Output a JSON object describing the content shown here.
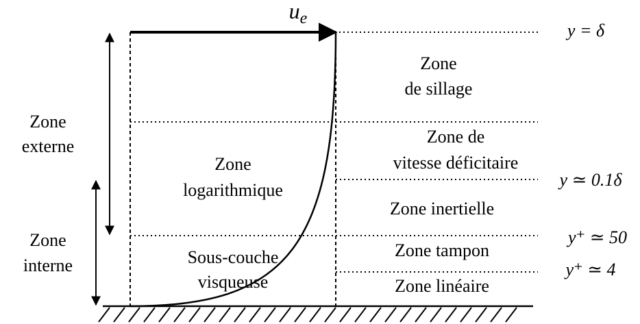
{
  "velocity_label": {
    "base": "u",
    "sub": "e"
  },
  "left_labels": [
    {
      "lines": [
        "Zone",
        "externe"
      ]
    },
    {
      "lines": [
        "Zone",
        "interne"
      ]
    }
  ],
  "inner_labels": [
    {
      "lines": [
        "Zone",
        "logarithmique"
      ]
    },
    {
      "lines": [
        "Sous-couche",
        "visqueuse"
      ]
    }
  ],
  "zones": [
    {
      "lines": [
        "Zone",
        "de sillage"
      ]
    },
    {
      "lines": [
        "Zone de",
        "vitesse déficitaire"
      ]
    },
    {
      "lines": [
        "Zone inertielle"
      ]
    },
    {
      "lines": [
        "Zone tampon"
      ]
    },
    {
      "lines": [
        "Zone linéaire"
      ]
    }
  ],
  "boundaries": [
    "y = δ",
    "y ≃ 0.1δ",
    "y⁺ ≃ 50",
    "y⁺ ≃ 4"
  ]
}
